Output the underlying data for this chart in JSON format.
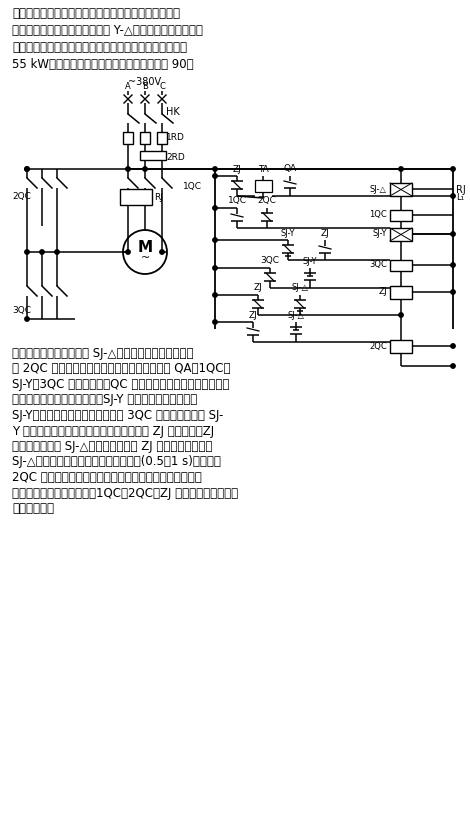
{
  "bg_color": "#ffffff",
  "top_text": [
    "这种控制线路在设计上增加了一级中间继电器和时间继",
    "电器，可以防止大容量电动机在 Y-△转换过程中，由于转换",
    "时间短，电弧不能完全熄灯而造成的相间短路。它适用于",
    "55 kW以上三角形接法的大容量电动机，见图 90。"
  ],
  "bottom_text": [
    "接通电源时，时间继电器 SJ-△获电动作，其常闭触点切",
    "断 2QC 电路，为起动做好准备。按下起动按鈕 QA，1QC、",
    "SJ-Y、3QC 获电动作。１QC 常开辅助触点闭合自锁，电动机",
    "绕组接成星形接法降压起动。SJ-Y 达到整定延时时间后，",
    "SJ-Y延时断开的常闭触点断开，使 3QC 失电释放，同时 SJ-",
    "Y 闭合延时的常开触点闭合，使中间继电器 ZJ 获电动作。ZJ",
    "常闭触点断开使 SJ-△失电释放，同时 ZJ 常开触点闭合。当",
    "SJ-△断电，延时常闭触点达到延时时间(0.5～1 s)闭合后，",
    "2QC 才获电动作。这时电动机由星形接法转换为三角形接",
    "法，起动过程结束。此时，1QC、2QC、ZJ 处于吸合状态，其余",
    "电器则分断。"
  ],
  "volt_label": "~380V",
  "abc_labels": [
    "A",
    "B",
    "C"
  ],
  "hk_label": "HK",
  "rd1_label": "1RD",
  "rd2_label": "2RD",
  "qc1_label": "1QC",
  "qc2_label": "2QC",
  "qc3_label": "3QC",
  "rj_label": "RJ",
  "zj_label": "ZJ",
  "ta_label": "TA",
  "qa_label": "QA",
  "sjd_label": "SJ-△",
  "sjy_label": "SJ-Y",
  "motor_label": "M",
  "l1_label": "L₁"
}
